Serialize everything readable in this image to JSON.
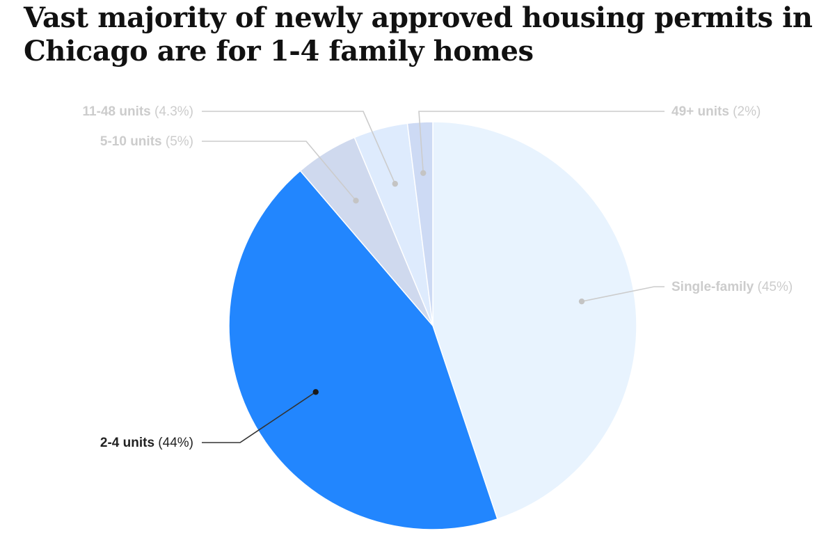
{
  "chart_data": {
    "type": "pie",
    "title": "Vast majority of newly approved housing permits in Chicago are for 1-4 family homes",
    "slices": [
      {
        "name": "Single-family",
        "value": 45,
        "label": "(45%)",
        "color": "#e8f3fe",
        "label_color": "#cccccc",
        "highlight": false
      },
      {
        "name": "2-4 units",
        "value": 44,
        "label": "(44%)",
        "color": "#2286fe",
        "label_color": "#222222",
        "highlight": true
      },
      {
        "name": "5-10 units",
        "value": 5,
        "label": "(5%)",
        "color": "#cfd9ee",
        "label_color": "#cccccc",
        "highlight": false
      },
      {
        "name": "11-48 units",
        "value": 4.3,
        "label": "(4.3%)",
        "color": "#deebfd",
        "label_color": "#cccccc",
        "highlight": false
      },
      {
        "name": "49+ units",
        "value": 2,
        "label": "(2%)",
        "color": "#cddaf4",
        "label_color": "#cccccc",
        "highlight": false
      }
    ],
    "start": "top",
    "direction": "clockwise",
    "legend": "none"
  }
}
